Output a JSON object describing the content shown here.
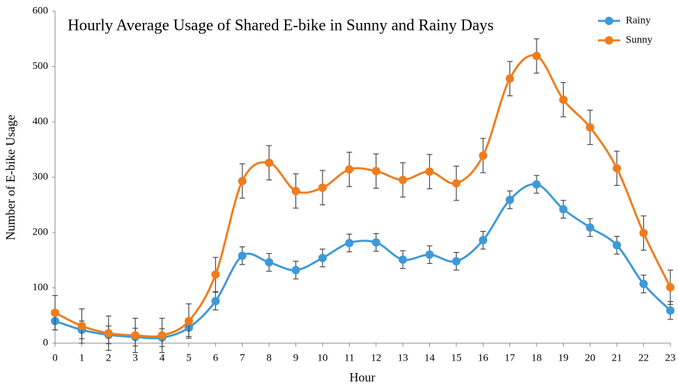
{
  "chart_data": {
    "type": "line",
    "title": "Hourly Average Usage of Shared E-bike in Sunny and Rainy Days",
    "x_label": "Hour",
    "y_label": "Number of E-bike Usage",
    "x": [
      0,
      1,
      2,
      3,
      4,
      5,
      6,
      7,
      8,
      9,
      10,
      11,
      12,
      13,
      14,
      15,
      16,
      17,
      18,
      19,
      20,
      21,
      22,
      23
    ],
    "xlim": [
      0,
      23
    ],
    "xticks": [
      0,
      1,
      2,
      3,
      4,
      5,
      6,
      7,
      8,
      9,
      10,
      11,
      12,
      13,
      14,
      15,
      16,
      17,
      18,
      19,
      20,
      21,
      22,
      23
    ],
    "ylim": [
      0,
      600
    ],
    "yticks": [
      0,
      100,
      200,
      300,
      400,
      500,
      600
    ],
    "grid": false,
    "legend": "upper right",
    "smooth": true,
    "series": [
      {
        "name": "Rainy",
        "color": "#3d9ad8",
        "values": [
          40,
          24,
          15,
          11,
          10,
          28,
          76,
          158,
          146,
          132,
          154,
          181,
          182,
          151,
          160,
          148,
          186,
          259,
          287,
          242,
          209,
          177,
          107,
          59
        ],
        "errors": [
          16,
          16,
          16,
          16,
          16,
          16,
          16,
          16,
          16,
          16,
          16,
          16,
          16,
          16,
          16,
          16,
          16,
          16,
          16,
          16,
          16,
          16,
          16,
          16
        ]
      },
      {
        "name": "Sunny",
        "color": "#f07c1c",
        "values": [
          55,
          31,
          18,
          14,
          14,
          40,
          124,
          293,
          326,
          275,
          281,
          314,
          311,
          295,
          310,
          289,
          339,
          478,
          519,
          440,
          390,
          316,
          199,
          101
        ],
        "errors": [
          31,
          31,
          31,
          31,
          31,
          31,
          31,
          31,
          31,
          31,
          31,
          31,
          31,
          31,
          31,
          31,
          31,
          31,
          31,
          31,
          31,
          31,
          31,
          31
        ]
      }
    ]
  }
}
